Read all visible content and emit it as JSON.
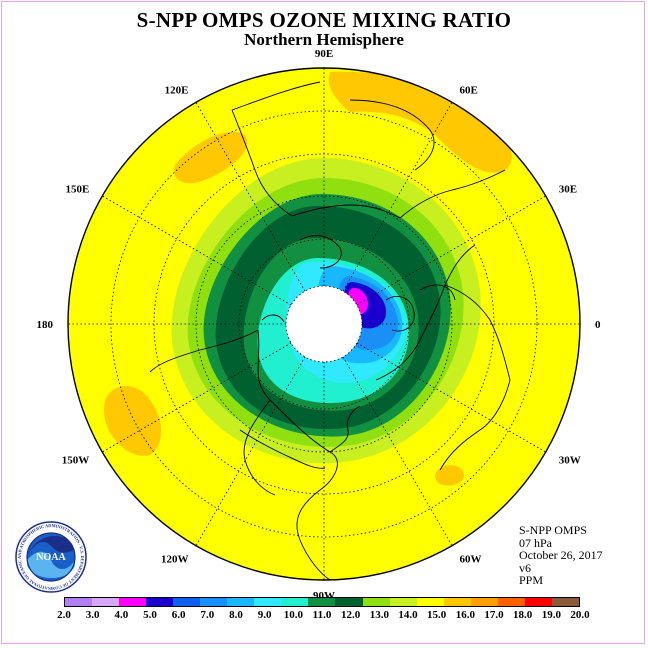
{
  "title": "S-NPP OMPS OZONE MIXING RATIO",
  "subtitle": "Northern Hemisphere",
  "longitude_labels": [
    "90E",
    "60E",
    "30E",
    "0",
    "30W",
    "60W",
    "90W",
    "120W",
    "150W",
    "180",
    "150E",
    "120E"
  ],
  "info": {
    "instrument": "S-NPP OMPS",
    "level": "07 hPa",
    "date": "October 26, 2017",
    "version": "v6",
    "units": "PPM"
  },
  "colorbar": {
    "ticks": [
      "2.0",
      "3.0",
      "4.0",
      "5.0",
      "6.0",
      "7.0",
      "8.0",
      "9.0",
      "10.0",
      "11.0",
      "12.0",
      "13.0",
      "14.0",
      "15.0",
      "16.0",
      "17.0",
      "18.0",
      "19.0",
      "20.0"
    ],
    "colors": [
      "#b080f0",
      "#d8a8f8",
      "#ff00ff",
      "#1a00d0",
      "#1060f0",
      "#1890f8",
      "#18b8ff",
      "#30e8ff",
      "#20f0d0",
      "#109040",
      "#006030",
      "#90e010",
      "#c8f020",
      "#ffff00",
      "#ffc800",
      "#ffa000",
      "#ff6000",
      "#ff0000",
      "#8b5a3c"
    ]
  },
  "logo": {
    "text": "NOAA",
    "ring_text": "NATIONAL OCEANIC AND ATMOSPHERIC ADMINISTRATION · U.S. DEPARTMENT OF COMMERCE"
  }
}
